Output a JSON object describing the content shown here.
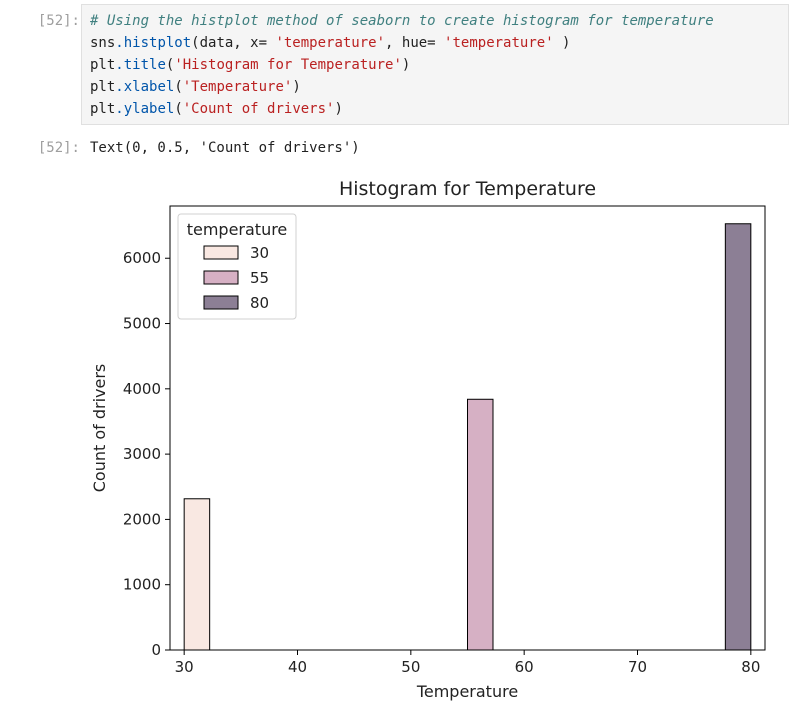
{
  "cells": {
    "input_prompt": "[52]:",
    "output_prompt": "[52]:",
    "code": {
      "line1": "# Using the histplot method of seaborn to create histogram for temperature",
      "line2": {
        "a": "sns",
        "b": ".histplot",
        "c": "(data, x= ",
        "d": "'temperature'",
        "e": ", hue= ",
        "f": "'temperature'",
        "g": " )"
      },
      "line3": {
        "a": "plt",
        "b": ".title",
        "c": "(",
        "d": "'Histogram for Temperature'",
        "e": ")"
      },
      "line4": {
        "a": "plt",
        "b": ".xlabel",
        "c": "(",
        "d": "'Temperature'",
        "e": ")"
      },
      "line5": {
        "a": "plt",
        "b": ".ylabel",
        "c": "(",
        "d": "'Count of drivers'",
        "e": ")"
      }
    },
    "output": "Text(0, 0.5, 'Count of drivers')"
  },
  "chart_data": {
    "type": "bar",
    "title": "Histogram for Temperature",
    "xlabel": "Temperature",
    "ylabel": "Count of drivers",
    "xlim": [
      28.75,
      81.25
    ],
    "ylim": [
      0,
      6800
    ],
    "xticks": [
      "30",
      "40",
      "50",
      "60",
      "70",
      "80"
    ],
    "yticks": [
      "0",
      "1000",
      "2000",
      "3000",
      "4000",
      "5000",
      "6000"
    ],
    "legend_title": "temperature",
    "legend_position": "top-left",
    "series": [
      {
        "name": "30",
        "x0": 30.0,
        "x1": 32.25,
        "value": 2316,
        "color": "#f9e8e2"
      },
      {
        "name": "55",
        "x0": 55.0,
        "x1": 57.25,
        "value": 3840,
        "color": "#d6b0c4"
      },
      {
        "name": "80",
        "x0": 77.75,
        "x1": 80.0,
        "value": 6528,
        "color": "#8c7f95"
      }
    ]
  }
}
